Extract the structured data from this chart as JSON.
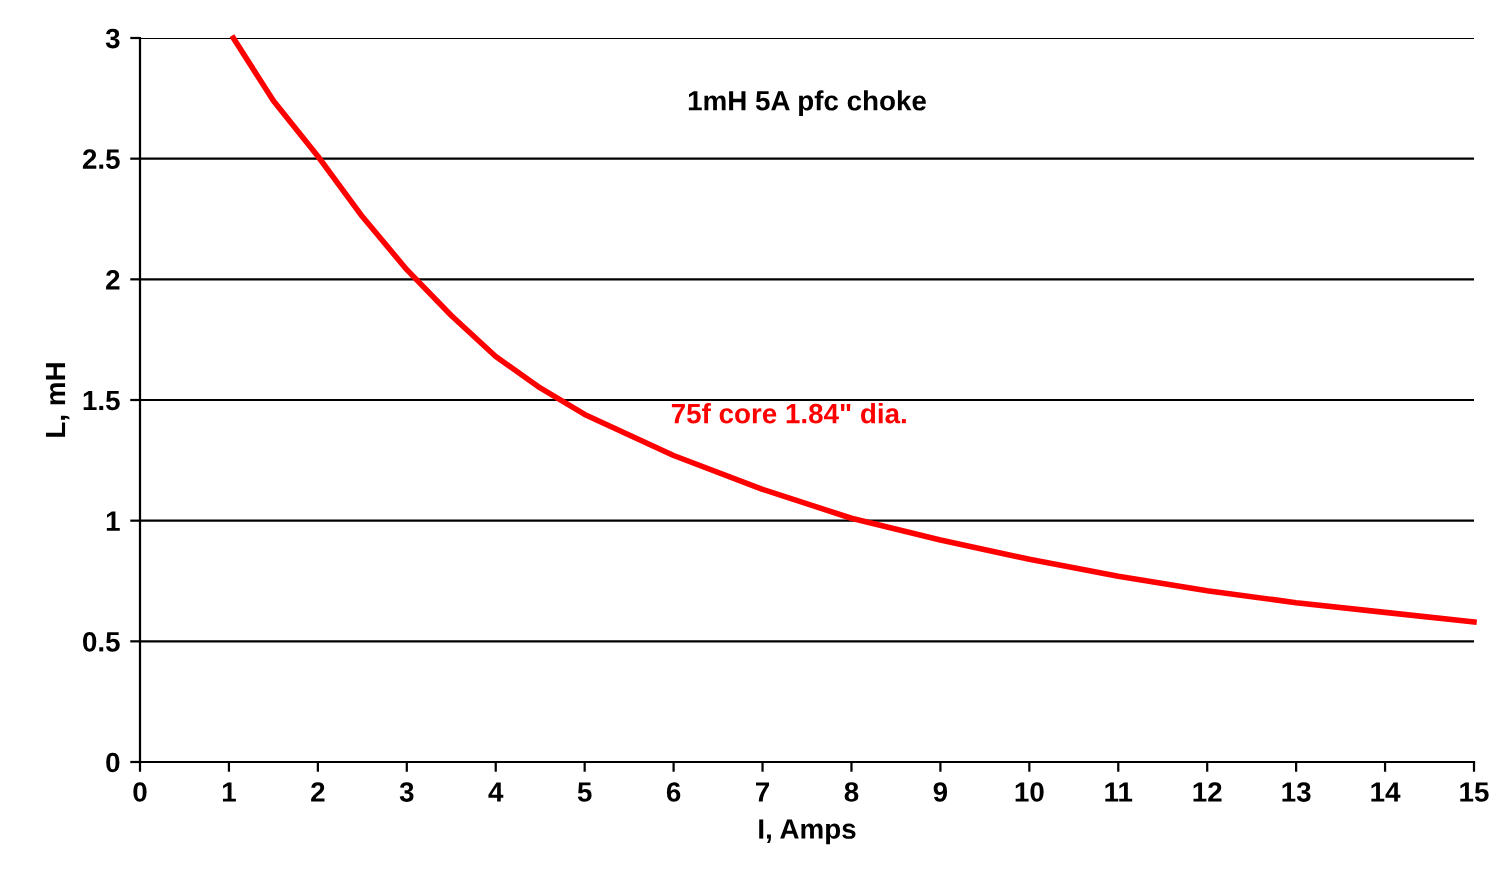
{
  "chart_data": {
    "type": "line",
    "xlabel": "I, Amps",
    "ylabel": "L, mH",
    "annotations": [
      "1mH 5A pfc choke"
    ],
    "xlim": [
      0,
      15
    ],
    "xticks": [
      0,
      1,
      2,
      3,
      4,
      5,
      6,
      7,
      8,
      9,
      10,
      11,
      12,
      13,
      14,
      15
    ],
    "ylim": [
      0,
      3
    ],
    "yticks": [
      0,
      0.5,
      1,
      1.5,
      2,
      2.5,
      3
    ],
    "grid": "y",
    "series": [
      {
        "name": "75f core 1.84\" dia.",
        "color": "#ff0000",
        "x": [
          1.05,
          1.5,
          2,
          2.5,
          3,
          3.5,
          4,
          4.5,
          5,
          6,
          7,
          8,
          9,
          10,
          11,
          12,
          13,
          14,
          15
        ],
        "values": [
          3,
          2.74,
          2.51,
          2.26,
          2.04,
          1.85,
          1.68,
          1.55,
          1.44,
          1.27,
          1.13,
          1.01,
          0.92,
          0.84,
          0.77,
          0.71,
          0.66,
          0.62,
          0.58
        ]
      }
    ]
  }
}
